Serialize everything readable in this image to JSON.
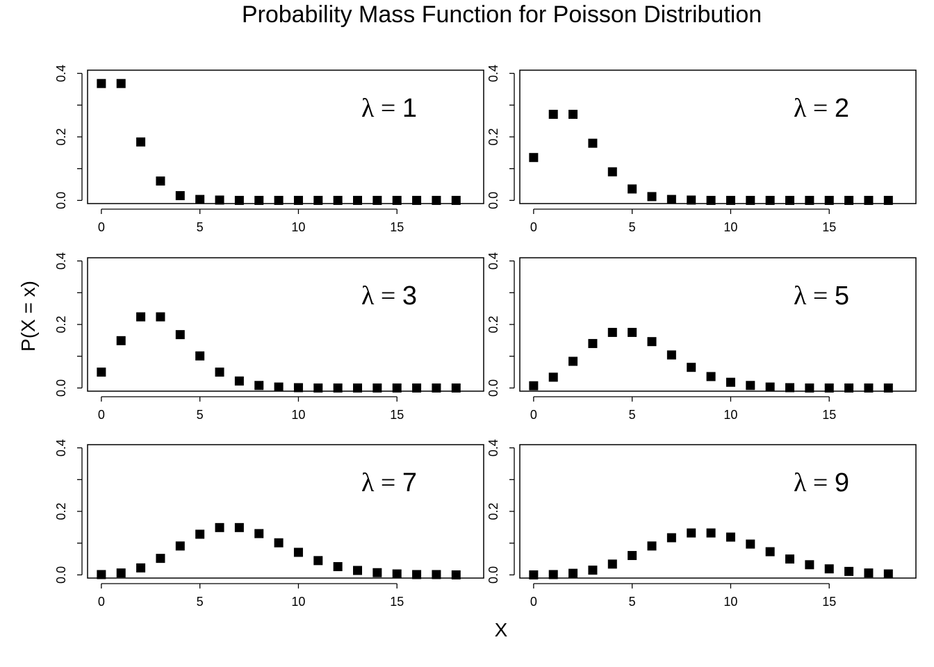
{
  "figure": {
    "title": "Probability Mass Function for Poisson Distribution",
    "xlabel": "X",
    "ylabel": "P(X = x)"
  },
  "chart_data": [
    {
      "type": "scatter",
      "label": "λ = 1",
      "lambda": 1,
      "x": [
        0,
        1,
        2,
        3,
        4,
        5,
        6,
        7,
        8,
        9,
        10,
        11,
        12,
        13,
        14,
        15,
        16,
        17,
        18
      ],
      "y": [
        0.368,
        0.368,
        0.184,
        0.061,
        0.015,
        0.003,
        0.001,
        0.0,
        0.0,
        0.0,
        0.0,
        0.0,
        0.0,
        0.0,
        0.0,
        0.0,
        0.0,
        0.0,
        0.0
      ],
      "xlim": [
        -0.7,
        19.4
      ],
      "ylim": [
        -0.01,
        0.41
      ],
      "xticks": [
        0,
        5,
        10,
        15
      ],
      "yticks": [
        0.0,
        0.2,
        0.4
      ],
      "ytick_labels": [
        "0.0",
        "0.2",
        "0.4"
      ],
      "grid": false,
      "marker": "square",
      "color": "#000000"
    },
    {
      "type": "scatter",
      "label": "λ = 2",
      "lambda": 2,
      "x": [
        0,
        1,
        2,
        3,
        4,
        5,
        6,
        7,
        8,
        9,
        10,
        11,
        12,
        13,
        14,
        15,
        16,
        17,
        18
      ],
      "y": [
        0.135,
        0.271,
        0.271,
        0.18,
        0.09,
        0.036,
        0.012,
        0.003,
        0.001,
        0.0,
        0.0,
        0.0,
        0.0,
        0.0,
        0.0,
        0.0,
        0.0,
        0.0,
        0.0
      ],
      "xlim": [
        -0.7,
        19.4
      ],
      "ylim": [
        -0.01,
        0.41
      ],
      "xticks": [
        0,
        5,
        10,
        15
      ],
      "yticks": [
        0.0,
        0.2,
        0.4
      ],
      "ytick_labels": [
        "0.0",
        "0.2",
        "0.4"
      ],
      "grid": false,
      "marker": "square",
      "color": "#000000"
    },
    {
      "type": "scatter",
      "label": "λ = 3",
      "lambda": 3,
      "x": [
        0,
        1,
        2,
        3,
        4,
        5,
        6,
        7,
        8,
        9,
        10,
        11,
        12,
        13,
        14,
        15,
        16,
        17,
        18
      ],
      "y": [
        0.05,
        0.149,
        0.224,
        0.224,
        0.168,
        0.101,
        0.05,
        0.022,
        0.008,
        0.003,
        0.001,
        0.0,
        0.0,
        0.0,
        0.0,
        0.0,
        0.0,
        0.0,
        0.0
      ],
      "xlim": [
        -0.7,
        19.4
      ],
      "ylim": [
        -0.01,
        0.41
      ],
      "xticks": [
        0,
        5,
        10,
        15
      ],
      "yticks": [
        0.0,
        0.2,
        0.4
      ],
      "ytick_labels": [
        "0.0",
        "0.2",
        "0.4"
      ],
      "grid": false,
      "marker": "square",
      "color": "#000000"
    },
    {
      "type": "scatter",
      "label": "λ = 5",
      "lambda": 5,
      "x": [
        0,
        1,
        2,
        3,
        4,
        5,
        6,
        7,
        8,
        9,
        10,
        11,
        12,
        13,
        14,
        15,
        16,
        17,
        18
      ],
      "y": [
        0.007,
        0.034,
        0.084,
        0.14,
        0.175,
        0.175,
        0.146,
        0.104,
        0.065,
        0.036,
        0.018,
        0.008,
        0.003,
        0.001,
        0.0,
        0.0,
        0.0,
        0.0,
        0.0
      ],
      "xlim": [
        -0.7,
        19.4
      ],
      "ylim": [
        -0.01,
        0.41
      ],
      "xticks": [
        0,
        5,
        10,
        15
      ],
      "yticks": [
        0.0,
        0.2,
        0.4
      ],
      "ytick_labels": [
        "0.0",
        "0.2",
        "0.4"
      ],
      "grid": false,
      "marker": "square",
      "color": "#000000"
    },
    {
      "type": "scatter",
      "label": "λ = 7",
      "lambda": 7,
      "x": [
        0,
        1,
        2,
        3,
        4,
        5,
        6,
        7,
        8,
        9,
        10,
        11,
        12,
        13,
        14,
        15,
        16,
        17,
        18
      ],
      "y": [
        0.001,
        0.006,
        0.022,
        0.052,
        0.091,
        0.128,
        0.149,
        0.149,
        0.13,
        0.101,
        0.071,
        0.045,
        0.026,
        0.014,
        0.007,
        0.003,
        0.001,
        0.001,
        0.0
      ],
      "xlim": [
        -0.7,
        19.4
      ],
      "ylim": [
        -0.01,
        0.41
      ],
      "xticks": [
        0,
        5,
        10,
        15
      ],
      "yticks": [
        0.0,
        0.2,
        0.4
      ],
      "ytick_labels": [
        "0.0",
        "0.2",
        "0.4"
      ],
      "grid": false,
      "marker": "square",
      "color": "#000000"
    },
    {
      "type": "scatter",
      "label": "λ = 9",
      "lambda": 9,
      "x": [
        0,
        1,
        2,
        3,
        4,
        5,
        6,
        7,
        8,
        9,
        10,
        11,
        12,
        13,
        14,
        15,
        16,
        17,
        18
      ],
      "y": [
        0.0,
        0.001,
        0.005,
        0.015,
        0.034,
        0.061,
        0.091,
        0.117,
        0.132,
        0.132,
        0.119,
        0.097,
        0.073,
        0.05,
        0.032,
        0.019,
        0.011,
        0.006,
        0.003
      ],
      "xlim": [
        -0.7,
        19.4
      ],
      "ylim": [
        -0.01,
        0.41
      ],
      "xticks": [
        0,
        5,
        10,
        15
      ],
      "yticks": [
        0.0,
        0.2,
        0.4
      ],
      "ytick_labels": [
        "0.0",
        "0.2",
        "0.4"
      ],
      "grid": false,
      "marker": "square",
      "color": "#000000"
    }
  ]
}
